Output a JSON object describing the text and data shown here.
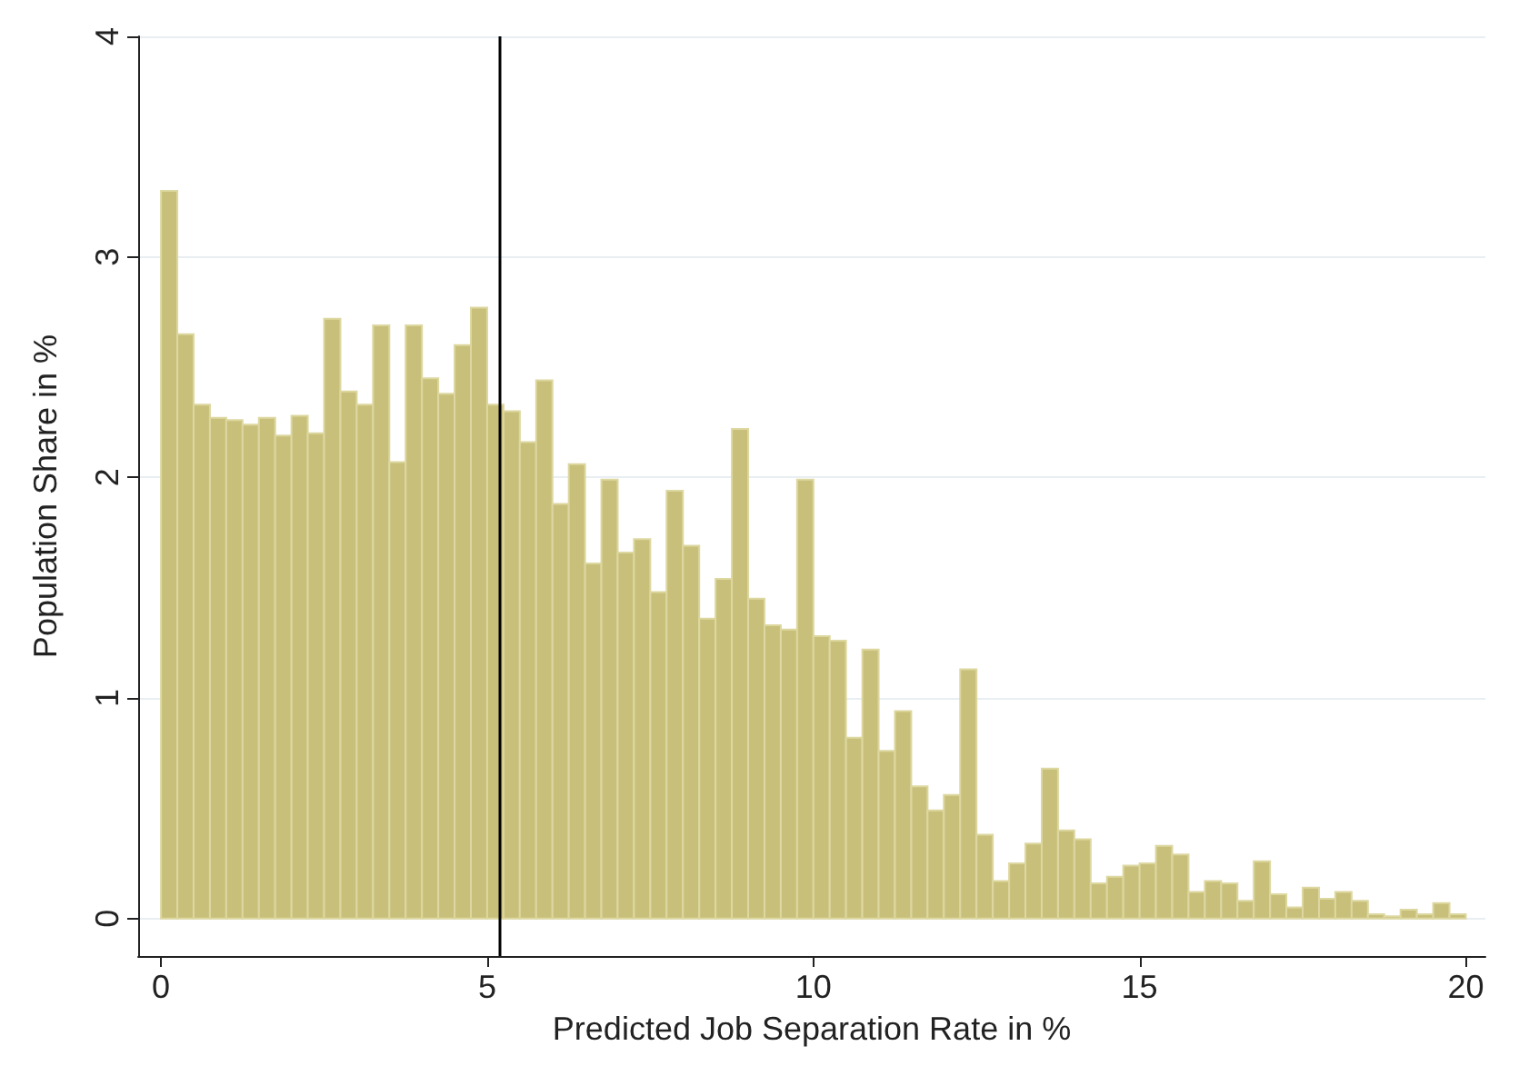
{
  "chart_data": {
    "type": "histogram",
    "xlabel": "Predicted Job Separation Rate in %",
    "ylabel": "Population Share in %",
    "bins": [
      0,
      0.25,
      0.5,
      0.75,
      1,
      1.25,
      1.5,
      1.75,
      2,
      2.25,
      2.5,
      2.75,
      3,
      3.25,
      3.5,
      3.75,
      4,
      4.25,
      4.5,
      4.75,
      5,
      5.25,
      5.5,
      5.75,
      6,
      6.25,
      6.5,
      6.75,
      7,
      7.25,
      7.5,
      7.75,
      8,
      8.25,
      8.5,
      8.75,
      9,
      9.25,
      9.5,
      9.75,
      10,
      10.25,
      10.5,
      10.75,
      11,
      11.25,
      11.5,
      11.75,
      12,
      12.25,
      12.5,
      12.75,
      13,
      13.25,
      13.5,
      13.75,
      14,
      14.25,
      14.5,
      14.75,
      15,
      15.25,
      15.5,
      15.75,
      16,
      16.25,
      16.5,
      16.75,
      17,
      17.25,
      17.5,
      17.75,
      18,
      18.25,
      18.5,
      18.75,
      19,
      19.25,
      19.5,
      19.75,
      20
    ],
    "values": [
      3.3,
      2.65,
      2.33,
      2.27,
      2.26,
      2.24,
      2.27,
      2.19,
      2.28,
      2.2,
      2.72,
      2.39,
      2.33,
      2.69,
      2.07,
      2.69,
      2.45,
      2.38,
      2.6,
      2.77,
      2.33,
      2.3,
      2.16,
      2.44,
      1.88,
      2.06,
      1.61,
      1.99,
      1.66,
      1.72,
      1.48,
      1.94,
      1.69,
      1.36,
      1.54,
      2.22,
      1.45,
      1.33,
      1.31,
      1.99,
      1.28,
      1.26,
      0.82,
      1.22,
      0.76,
      0.94,
      0.6,
      0.49,
      0.56,
      1.13,
      0.38,
      0.17,
      0.25,
      0.34,
      0.68,
      0.4,
      0.36,
      0.16,
      0.19,
      0.24,
      0.25,
      0.33,
      0.29,
      0.12,
      0.17,
      0.16,
      0.08,
      0.26,
      0.11,
      0.05,
      0.14,
      0.09,
      0.12,
      0.08,
      0.02,
      0.01,
      0.04,
      0.02,
      0.07,
      0.02
    ],
    "color": "#c8c07a",
    "xlim": [
      -0.35,
      20.3
    ],
    "xticks": [
      0,
      5,
      10,
      15,
      20
    ],
    "ylim": [
      -0.17,
      4
    ],
    "yticks": [
      0,
      1,
      2,
      3,
      4
    ],
    "grid": "y",
    "ref_lines": [
      {
        "axis": "x",
        "value": 5.2,
        "color": "#000000"
      }
    ]
  }
}
